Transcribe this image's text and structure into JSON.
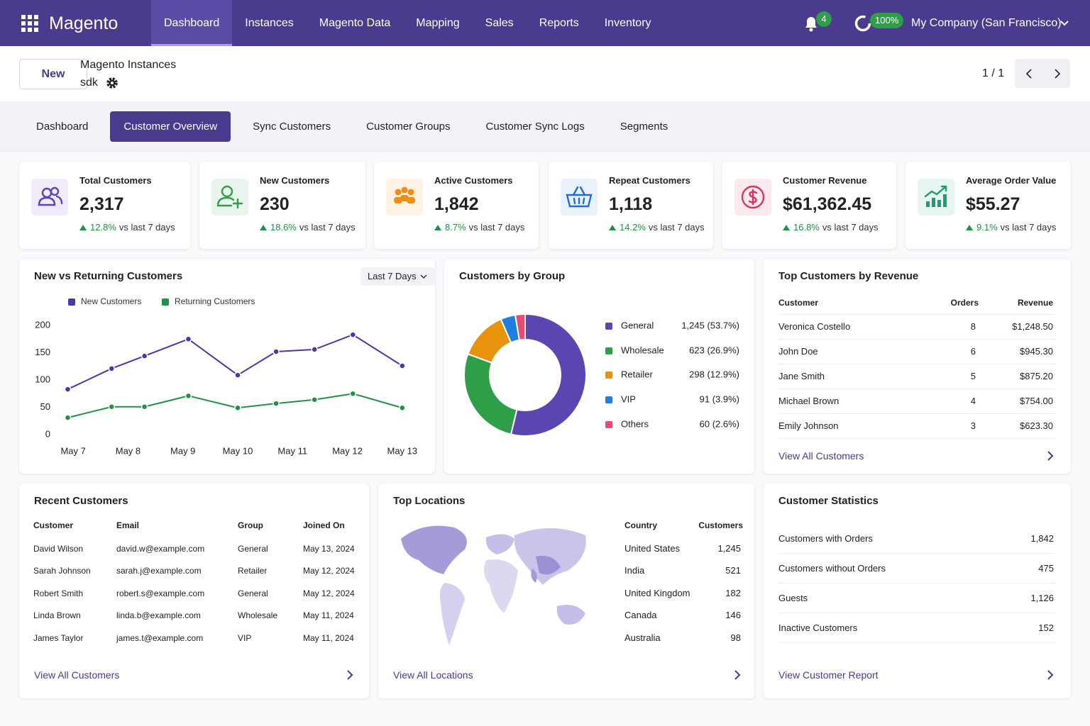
{
  "nav": {
    "brand": "Magento",
    "items": [
      "Dashboard",
      "Instances",
      "Magento Data",
      "Mapping",
      "Sales",
      "Reports",
      "Inventory"
    ],
    "active": 0,
    "notifications": "4",
    "progress": "100%",
    "company": "My Company (San Francisco)"
  },
  "header": {
    "new_button": "New",
    "breadcrumb": "Magento Instances",
    "record": "sdk",
    "pager": "1 / 1"
  },
  "tabs": {
    "items": [
      "Dashboard",
      "Customer Overview",
      "Sync Customers",
      "Customer Groups",
      "Customer Sync Logs",
      "Segments"
    ],
    "active": 1
  },
  "kpis": [
    {
      "label": "Total Customers",
      "value": "2,317",
      "change": "12.8%",
      "note": "vs last 7 days",
      "color": "#5b45b0"
    },
    {
      "label": "New Customers",
      "value": "230",
      "change": "18.6%",
      "note": "vs last 7 days",
      "color": "#2e9e48"
    },
    {
      "label": "Active Customers",
      "value": "1,842",
      "change": "8.7%",
      "note": "vs last 7 days",
      "color": "#f08c1a"
    },
    {
      "label": "Repeat Customers",
      "value": "1,118",
      "change": "14.2%",
      "note": "vs last 7 days",
      "color": "#1e6fd0"
    },
    {
      "label": "Customer Revenue",
      "value": "$61,362.45",
      "change": "16.8%",
      "note": "vs last 7 days",
      "color": "#d9365e"
    },
    {
      "label": "Average Order Value",
      "value": "$55.27",
      "change": "9.1%",
      "note": "vs last 7 days",
      "color": "#1f9d6a"
    }
  ],
  "chart_data": [
    {
      "type": "line",
      "title": "New vs Returning Customers",
      "filter": "Last 7 Days",
      "x": [
        6.9,
        7.7,
        8.3,
        9.1,
        10,
        10.7,
        11.4,
        12.1,
        13
      ],
      "xlim": [
        6.7,
        13.3
      ],
      "xticks": [
        {
          "value": 7,
          "label": "May 7"
        },
        {
          "value": 8,
          "label": "May 8"
        },
        {
          "value": 9,
          "label": "May 9"
        },
        {
          "value": 10,
          "label": "May 10"
        },
        {
          "value": 11,
          "label": "May 11"
        },
        {
          "value": 12,
          "label": "May 12"
        },
        {
          "value": 13,
          "label": "May 13"
        }
      ],
      "ylim": [
        0,
        200
      ],
      "yticks": [
        0,
        50,
        100,
        150,
        200
      ],
      "series": [
        {
          "name": "New Customers",
          "color": "#4b35a8",
          "values": [
            83,
            121,
            144,
            175,
            109,
            152,
            156,
            183,
            126
          ]
        },
        {
          "name": "Returning Customers",
          "color": "#229145",
          "values": [
            31,
            51,
            51,
            71,
            49,
            57,
            64,
            75,
            49
          ]
        }
      ]
    },
    {
      "type": "pie",
      "title": "Customers by Group",
      "donut": true,
      "categories": [
        "General",
        "Wholesale",
        "Retailer",
        "VIP",
        "Others"
      ],
      "values": [
        1245,
        623,
        298,
        91,
        60
      ],
      "value_labels": [
        "1,245 (53.7%)",
        "623 (26.9%)",
        "298 (12.9%)",
        "91 (3.9%)",
        "60 (2.6%)"
      ],
      "colors": [
        "#5b45b0",
        "#2e9e48",
        "#e8930c",
        "#1e7fe0",
        "#e84a78"
      ]
    }
  ],
  "top_customers": {
    "title": "Top Customers by Revenue",
    "columns": [
      "Customer",
      "Orders",
      "Revenue"
    ],
    "rows": [
      [
        "Veronica Costello",
        "8",
        "$1,248.50"
      ],
      [
        "John Doe",
        "6",
        "$945.30"
      ],
      [
        "Jane Smith",
        "5",
        "$875.20"
      ],
      [
        "Michael Brown",
        "4",
        "$754.00"
      ],
      [
        "Emily Johnson",
        "3",
        "$623.30"
      ]
    ],
    "link": "View All Customers"
  },
  "recent_customers": {
    "title": "Recent Customers",
    "columns": [
      "Customer",
      "Email",
      "Group",
      "Joined On"
    ],
    "rows": [
      [
        "David Wilson",
        "david.w@example.com",
        "General",
        "May 13, 2024"
      ],
      [
        "Sarah Johnson",
        "sarah.j@example.com",
        "Retailer",
        "May 12, 2024"
      ],
      [
        "Robert Smith",
        "robert.s@example.com",
        "General",
        "May 12, 2024"
      ],
      [
        "Linda Brown",
        "linda.b@example.com",
        "Wholesale",
        "May 11, 2024"
      ],
      [
        "James Taylor",
        "james.t@example.com",
        "VIP",
        "May 11, 2024"
      ]
    ],
    "link": "View All Customers"
  },
  "top_locations": {
    "title": "Top Locations",
    "columns": [
      "Country",
      "Customers"
    ],
    "rows": [
      [
        "United States",
        "1,245"
      ],
      [
        "India",
        "521"
      ],
      [
        "United Kingdom",
        "182"
      ],
      [
        "Canada",
        "146"
      ],
      [
        "Australia",
        "98"
      ]
    ],
    "link": "View All Locations"
  },
  "customer_statistics": {
    "title": "Customer Statistics",
    "rows": [
      [
        "Customers with Orders",
        "1,842"
      ],
      [
        "Customers without Orders",
        "475"
      ],
      [
        "Guests",
        "1,126"
      ],
      [
        "Inactive Customers",
        "152"
      ]
    ],
    "link": "View Customer Report"
  }
}
